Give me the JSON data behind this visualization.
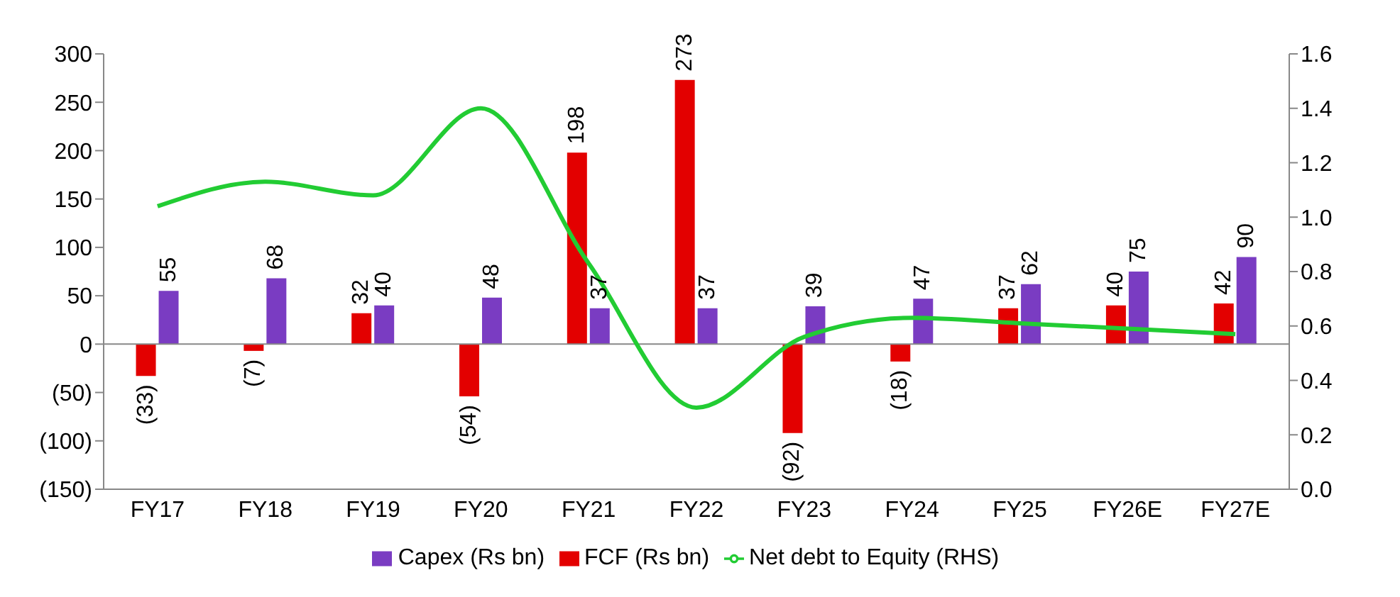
{
  "chart_data": {
    "type": "bar",
    "categories": [
      "FY17",
      "FY18",
      "FY19",
      "FY20",
      "FY21",
      "FY22",
      "FY23",
      "FY24",
      "FY25",
      "FY26E",
      "FY27E"
    ],
    "series": [
      {
        "name": "FCF (Rs bn)",
        "color": "#e30000",
        "values": [
          -33,
          -7,
          32,
          -54,
          198,
          273,
          -92,
          -18,
          37,
          40,
          42
        ],
        "value_labels": [
          "(33)",
          "(7)",
          "32",
          "(54)",
          "198",
          "273",
          "(92)",
          "(18)",
          "37",
          "40",
          "42"
        ]
      },
      {
        "name": "Capex (Rs bn)",
        "color": "#7a3cc2",
        "values": [
          55,
          68,
          40,
          48,
          37,
          37,
          39,
          47,
          62,
          75,
          90
        ],
        "value_labels": [
          "55",
          "68",
          "40",
          "48",
          "37",
          "37",
          "39",
          "47",
          "62",
          "75",
          "90"
        ]
      },
      {
        "name": "Net debt to Equity (RHS)",
        "type": "line",
        "axis": "y2",
        "color": "#22cc33",
        "values": [
          1.04,
          1.13,
          1.08,
          1.4,
          0.83,
          0.3,
          0.56,
          0.63,
          0.61,
          0.59,
          0.57
        ]
      }
    ],
    "ylim": [
      -150,
      300
    ],
    "yticks": [
      {
        "value": -150,
        "label": "(150)"
      },
      {
        "value": -100,
        "label": "(100)"
      },
      {
        "value": -50,
        "label": "(50)"
      },
      0,
      50,
      100,
      150,
      200,
      250,
      300
    ],
    "y2lim": [
      0,
      1.6
    ],
    "y2ticks": [
      {
        "value": 0,
        "label": "0.0"
      },
      {
        "value": 0.2,
        "label": "0.2"
      },
      {
        "value": 0.4,
        "label": "0.4"
      },
      {
        "value": 0.6,
        "label": "0.6"
      },
      {
        "value": 0.8,
        "label": "0.8"
      },
      {
        "value": 1,
        "label": "1.0"
      },
      {
        "value": 1.2,
        "label": "1.2"
      },
      {
        "value": 1.4,
        "label": "1.4"
      },
      {
        "value": 1.6,
        "label": "1.6"
      }
    ],
    "legend": "bottom",
    "marker": "none"
  }
}
